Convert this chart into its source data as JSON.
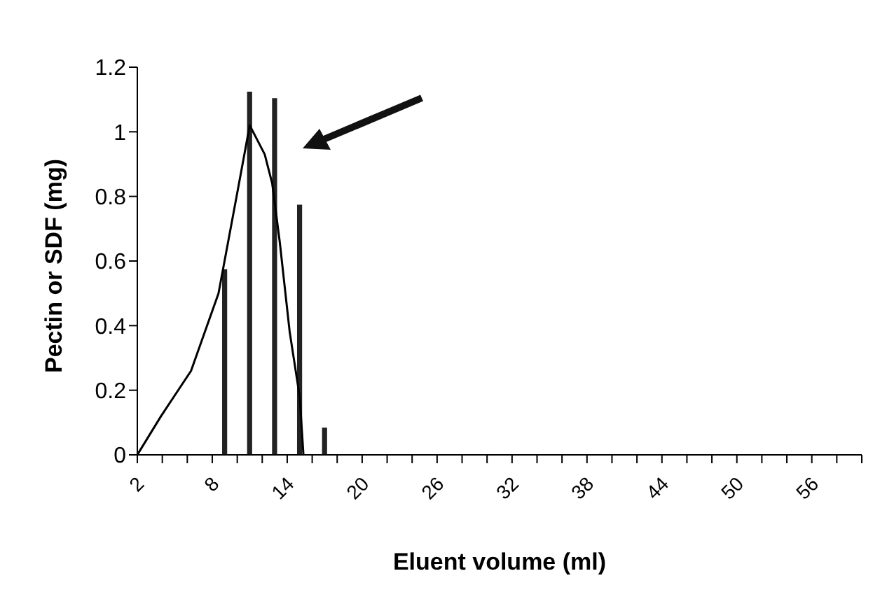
{
  "chart_data": {
    "type": "bar",
    "xlabel": "Eluent volume (ml)",
    "ylabel": "Pectin or SDF (mg)",
    "series": [
      {
        "color": "#a0a0a0",
        "x": [
          9,
          11,
          13,
          15,
          17
        ],
        "values": [
          0.57,
          1.12,
          1.1,
          0.77,
          0.08
        ]
      },
      {
        "type": "line",
        "color": "#000000",
        "x": [
          2,
          3.9,
          6.3,
          8.5,
          9.9,
          11,
          12.2,
          12.8,
          13.4,
          14.2,
          15,
          15.3
        ],
        "values": [
          0,
          0.12,
          0.26,
          0.5,
          0.79,
          1.02,
          0.93,
          0.84,
          0.66,
          0.38,
          0.18,
          0
        ]
      }
    ],
    "xlim": [
      2,
      60
    ],
    "xticks": [
      2,
      {
        "value": 4,
        "label": null
      },
      {
        "value": 6,
        "label": null
      },
      8,
      {
        "value": 10,
        "label": null
      },
      {
        "value": 12,
        "label": null
      },
      14,
      {
        "value": 16,
        "label": null
      },
      {
        "value": 18,
        "label": null
      },
      20,
      {
        "value": 22,
        "label": null
      },
      {
        "value": 24,
        "label": null
      },
      26,
      {
        "value": 28,
        "label": null
      },
      {
        "value": 30,
        "label": null
      },
      32,
      {
        "value": 34,
        "label": null
      },
      {
        "value": 36,
        "label": null
      },
      38,
      {
        "value": 40,
        "label": null
      },
      {
        "value": 42,
        "label": null
      },
      44,
      {
        "value": 46,
        "label": null
      },
      {
        "value": 48,
        "label": null
      },
      50,
      {
        "value": 52,
        "label": null
      },
      {
        "value": 54,
        "label": null
      },
      56,
      {
        "value": 58,
        "label": null
      },
      {
        "value": 60,
        "label": null
      }
    ],
    "ylim": [
      0,
      1.2
    ],
    "yticks": [
      0,
      0.2,
      0.4,
      0.6,
      0.8,
      1,
      1.2
    ],
    "grid": false,
    "legend": false,
    "marker": "none",
    "line_style": "solid"
  }
}
